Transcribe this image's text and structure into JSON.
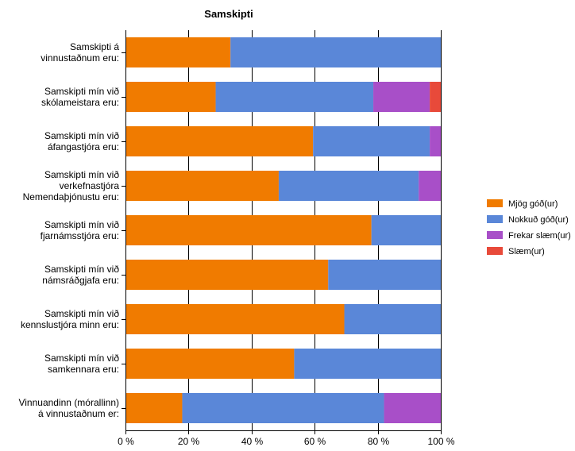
{
  "chart_data": {
    "type": "bar",
    "orientation": "horizontal",
    "stacked": true,
    "title": "Samskipti",
    "xlabel": "",
    "ylabel": "",
    "xlim": [
      0,
      100
    ],
    "x_ticks": [
      "0 %",
      "20 %",
      "40 %",
      "60 %",
      "80 %",
      "100 %"
    ],
    "x_tick_values": [
      0,
      20,
      40,
      60,
      80,
      100
    ],
    "grid": true,
    "legend_position": "right",
    "categories": [
      [
        "Samskipti á",
        "vinnustaðnum eru:"
      ],
      [
        "Samskipti mín við",
        "skólameistara eru:"
      ],
      [
        "Samskipti mín við",
        "áfangastjóra eru:"
      ],
      [
        "Samskipti mín við",
        "verkefnastjóra",
        "Nemendaþjónustu eru:"
      ],
      [
        "Samskipti mín við",
        "fjarnámsstjóra eru:"
      ],
      [
        "Samskipti mín við",
        "námsráðgjafa eru:"
      ],
      [
        "Samskipti mín við",
        "kennslustjóra minn eru:"
      ],
      [
        "Samskipti mín við",
        "samkennara eru:"
      ],
      [
        "Vinnuandinn (mórallinn)",
        "á vinnustaðnum er:"
      ]
    ],
    "series": [
      {
        "name": "Mjög góð(ur)",
        "color": "#f07b00",
        "values": [
          33.3,
          28.6,
          59.5,
          48.6,
          78.0,
          64.3,
          69.4,
          53.5,
          18.0
        ]
      },
      {
        "name": "Nokkuð góð(ur)",
        "color": "#5a87d8",
        "values": [
          66.7,
          50.0,
          37.0,
          44.4,
          22.0,
          35.7,
          30.6,
          46.5,
          64.0
        ]
      },
      {
        "name": "Frekar slæm(ur)",
        "color": "#a84fc8",
        "values": [
          0,
          17.9,
          3.5,
          7.0,
          0,
          0,
          0,
          0,
          18.0
        ]
      },
      {
        "name": "Slæm(ur)",
        "color": "#e84a3a",
        "values": [
          0,
          3.5,
          0,
          0,
          0,
          0,
          0,
          0,
          0
        ]
      }
    ]
  }
}
